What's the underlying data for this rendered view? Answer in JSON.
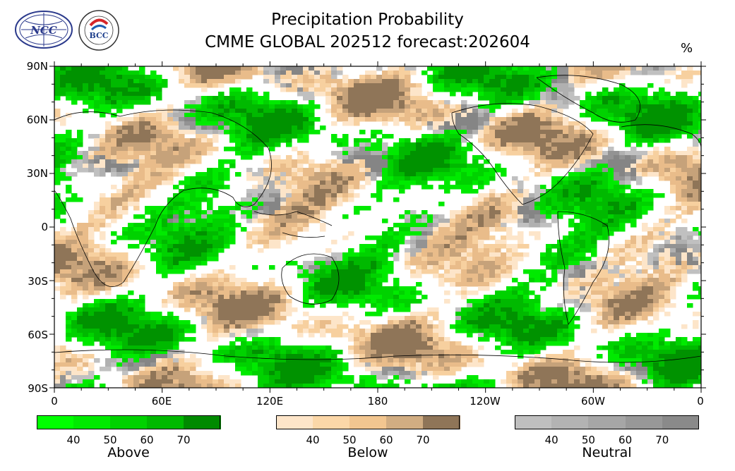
{
  "title": "Precipitation Probability",
  "subtitle": "CMME GLOBAL 202512 forecast:202604",
  "unit": "%",
  "logos": {
    "left": "NCC",
    "right": "BCC"
  },
  "map": {
    "lat_labels": [
      "90N",
      "60N",
      "30N",
      "0",
      "30S",
      "60S",
      "90S"
    ],
    "lon_labels": [
      "0",
      "60E",
      "120E",
      "180",
      "120W",
      "60W",
      "0"
    ],
    "colors": {
      "above": [
        "#00ea00",
        "#00d200",
        "#00b900",
        "#009200"
      ],
      "below": [
        "#fde5c9",
        "#f7d09f",
        "#e9bc8a",
        "#c6a27a",
        "#8f7558"
      ],
      "neutral": [
        "#c0c0c0",
        "#b0b0b0",
        "#a4a4a4",
        "#939393",
        "#858585"
      ],
      "land_line": "#000000"
    }
  },
  "colorbars": [
    {
      "name": "Above",
      "ticks": [
        "40",
        "50",
        "60",
        "70"
      ],
      "colors": [
        "#00ff00",
        "#00ea00",
        "#00d200",
        "#00b900",
        "#008a00"
      ]
    },
    {
      "name": "Below",
      "ticks": [
        "40",
        "50",
        "60",
        "70"
      ],
      "colors": [
        "#fde5c9",
        "#fbd7a8",
        "#f2c690",
        "#d1ad82",
        "#8f7558"
      ]
    },
    {
      "name": "Neutral",
      "ticks": [
        "40",
        "50",
        "60",
        "70"
      ],
      "colors": [
        "#bfbfbf",
        "#b3b3b3",
        "#a6a6a6",
        "#989898",
        "#8a8a8a"
      ]
    }
  ]
}
